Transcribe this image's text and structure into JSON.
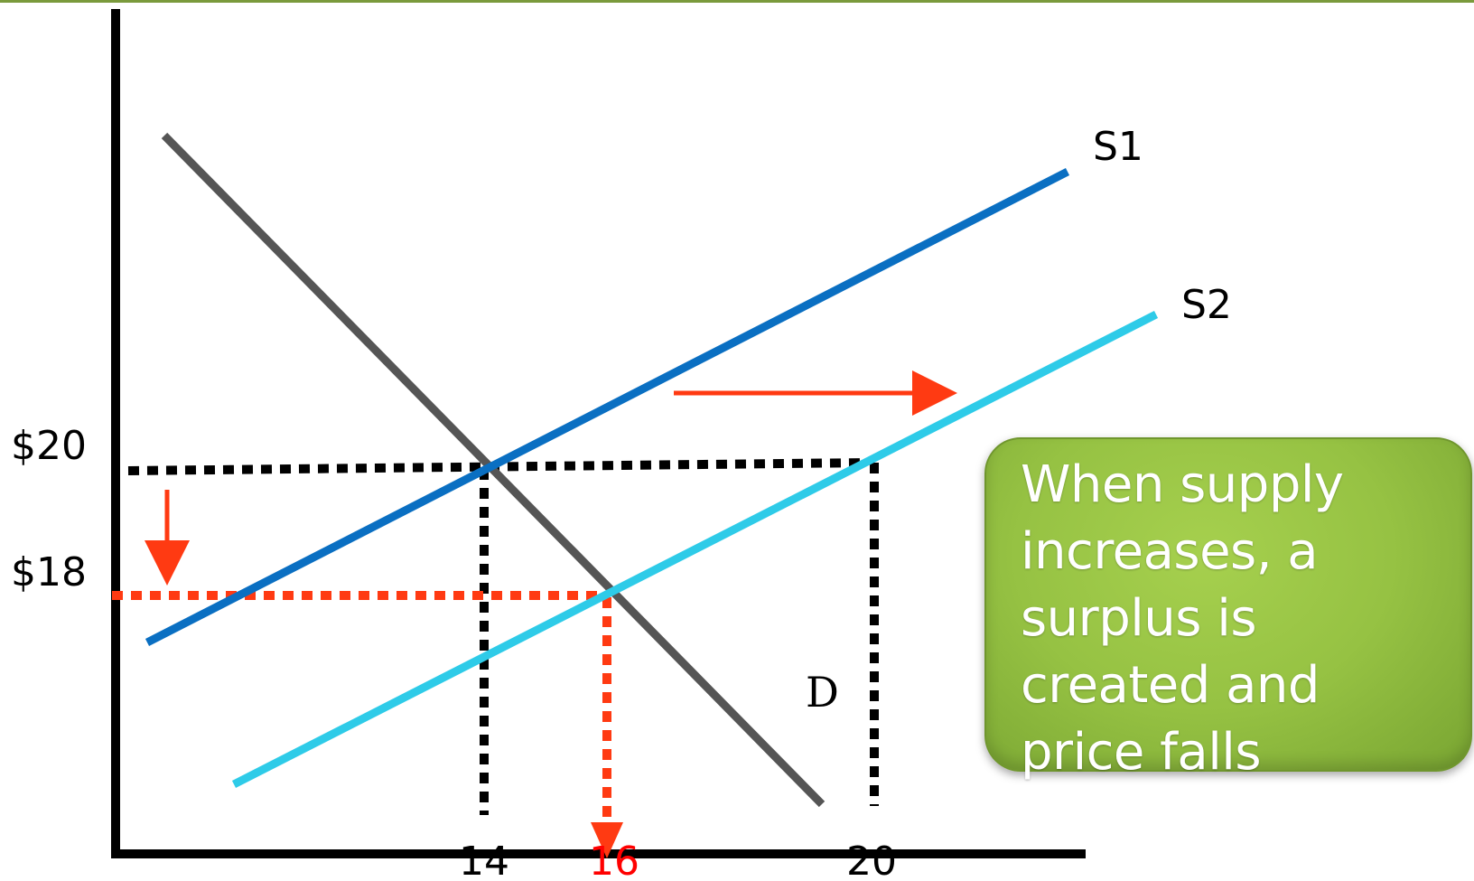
{
  "diagram": {
    "y_axis_labels": {
      "p20": "$20",
      "p18": "$18"
    },
    "x_axis_labels": {
      "q14": "14",
      "q16": "16",
      "q20": "20"
    },
    "curve_labels": {
      "s1": "S1",
      "s2": "S2",
      "d": "D"
    },
    "callout_text": "When supply increases, a surplus is created and price falls",
    "colors": {
      "axis": "#000000",
      "demand": "#555555",
      "supply_1": "#0a6fc2",
      "supply_2": "#2ecbe8",
      "guide_black": "#000000",
      "guide_red": "#ff3a12",
      "arrow": "#ff3a12",
      "callout_bg": "#96c243",
      "new_quantity_label": "#ff0000"
    }
  }
}
